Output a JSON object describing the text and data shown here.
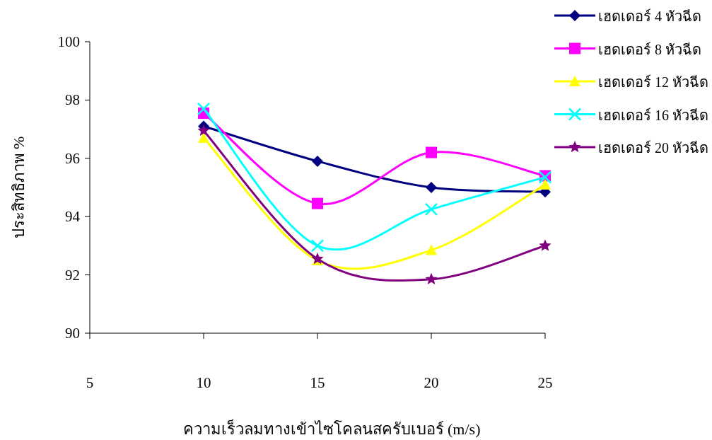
{
  "chart_data": {
    "type": "line",
    "xlabel": "ความเร็วลมทางเข้าไซโคลนสครับเบอร์ (m/s)",
    "ylabel": "ประสิทธิภาพ %",
    "x": [
      10,
      15,
      20,
      25
    ],
    "series": [
      {
        "name": "เฮดเดอร์ 4 หัวฉีด",
        "color": "#000080",
        "marker": "diamond",
        "values": [
          97.1,
          95.9,
          95.0,
          94.85
        ]
      },
      {
        "name": "เฮดเดอร์ 8 หัวฉีด",
        "color": "#ff00ff",
        "marker": "square",
        "values": [
          97.55,
          94.45,
          96.2,
          95.4
        ]
      },
      {
        "name": "เฮดเดอร์ 12 หัวฉีด",
        "color": "#ffff00",
        "marker": "triangle",
        "values": [
          96.7,
          92.5,
          92.85,
          95.1
        ]
      },
      {
        "name": "เฮดเดอร์ 16 หัวฉีด",
        "color": "#00ffff",
        "marker": "cross",
        "values": [
          97.7,
          93.0,
          94.25,
          95.35
        ]
      },
      {
        "name": "เฮดเดอร์ 20 หัวฉีด",
        "color": "#800080",
        "marker": "star",
        "values": [
          96.95,
          92.55,
          91.85,
          93.0
        ]
      }
    ],
    "xlim": [
      5,
      25
    ],
    "xticks": [
      5,
      10,
      15,
      20,
      25
    ],
    "ylim": [
      90,
      100
    ],
    "yticks": [
      90,
      92,
      94,
      96,
      98,
      100
    ],
    "grid": false,
    "legend": "right",
    "line_style": "solid"
  }
}
